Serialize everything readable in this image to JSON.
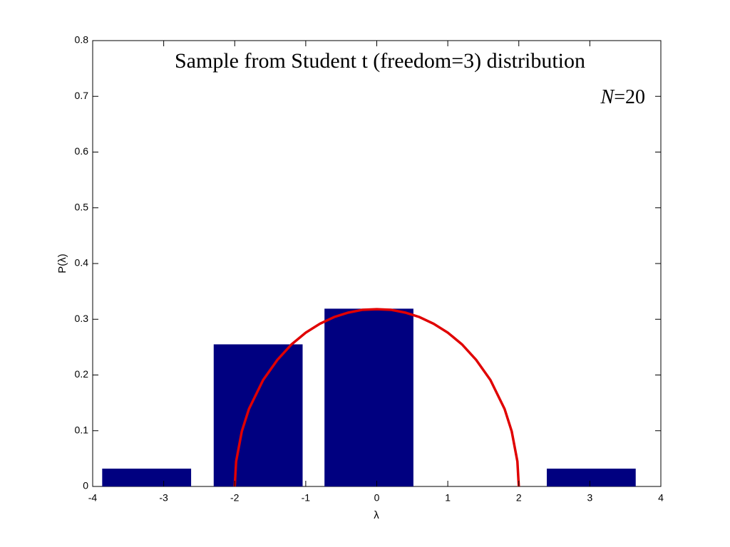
{
  "chart_data": {
    "type": "bar",
    "title": "Sample from Student t (freedom=3) distribution",
    "annotation": "N=20",
    "xlabel": "λ",
    "ylabel": "P(λ)",
    "x": [
      -3.24,
      -1.67,
      -0.11,
      1.46,
      3.02
    ],
    "values": [
      0.032,
      0.255,
      0.319,
      0,
      0.032
    ],
    "color": "#000080",
    "curve": {
      "type": "line",
      "color": "#e00000",
      "x": [
        -2,
        -1.98,
        -1.9,
        -1.8,
        -1.6,
        -1.4,
        -1.2,
        -1.0,
        -0.8,
        -0.6,
        -0.4,
        -0.2,
        0,
        0.2,
        0.4,
        0.6,
        0.8,
        1.0,
        1.2,
        1.4,
        1.6,
        1.8,
        1.9,
        1.98,
        2
      ],
      "values": [
        0,
        0.045,
        0.099,
        0.139,
        0.191,
        0.227,
        0.255,
        0.276,
        0.292,
        0.304,
        0.312,
        0.317,
        0.318,
        0.317,
        0.312,
        0.304,
        0.292,
        0.276,
        0.255,
        0.227,
        0.191,
        0.139,
        0.099,
        0.045,
        0
      ]
    },
    "xlim": [
      -4,
      4
    ],
    "xticks": [
      -4,
      -3,
      -2,
      -1,
      0,
      1,
      2,
      3,
      4
    ],
    "ylim": [
      0,
      0.8
    ],
    "yticks": [
      0,
      0.1,
      0.2,
      0.3,
      0.4,
      0.5,
      0.6,
      0.7,
      0.8
    ],
    "grid": false
  }
}
